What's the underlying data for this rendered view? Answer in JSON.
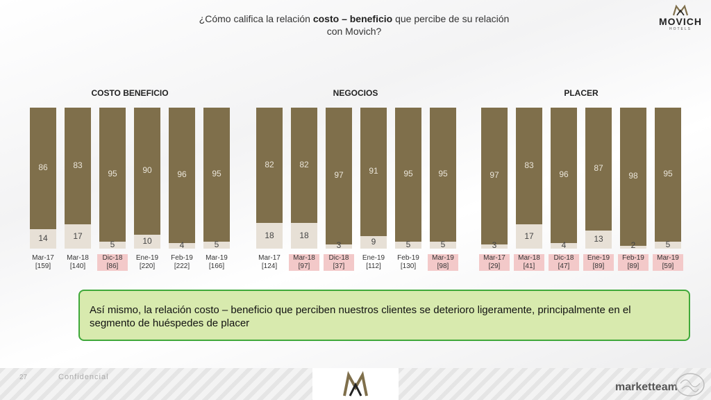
{
  "title": {
    "part1": "¿Cómo califica la relación ",
    "bold": "costo – beneficio",
    "part2": " que percibe de su relación",
    "line2": "con Movich?"
  },
  "brand": {
    "name": "MOVICH",
    "sub": "HOTELS"
  },
  "colors": {
    "bar_top": "#7f6f4b",
    "bar_bottom": "#e7e0d6",
    "highlight": "#f3c9c9",
    "note_bg": "#d8eaae",
    "note_border": "#3fa83a"
  },
  "chart_data": [
    {
      "type": "bar",
      "title": "COSTO BENEFICIO",
      "categories": [
        "Mar-17",
        "Mar-18",
        "Dic-18",
        "Ene-19",
        "Feb-19",
        "Mar-19"
      ],
      "bases": [
        "[159]",
        "[140]",
        "[86]",
        "[220]",
        "[222]",
        "[166]"
      ],
      "highlighted": [
        false,
        false,
        true,
        false,
        false,
        false
      ],
      "series": [
        {
          "values": [
            86,
            83,
            95,
            90,
            96,
            95
          ]
        },
        {
          "values": [
            14,
            17,
            5,
            10,
            4,
            5
          ]
        }
      ],
      "stacked": true,
      "ylim": [
        0,
        100
      ]
    },
    {
      "type": "bar",
      "title": "NEGOCIOS",
      "categories": [
        "Mar-17",
        "Mar-18",
        "Dic-18",
        "Ene-19",
        "Feb-19",
        "Mar-19"
      ],
      "bases": [
        "[124]",
        "[97]",
        "[37]",
        "[112]",
        "[130]",
        "[98]"
      ],
      "highlighted": [
        false,
        true,
        true,
        false,
        false,
        true
      ],
      "series": [
        {
          "values": [
            82,
            82,
            97,
            91,
            95,
            95
          ]
        },
        {
          "values": [
            18,
            18,
            3,
            9,
            5,
            5
          ]
        }
      ],
      "stacked": true,
      "ylim": [
        0,
        100
      ]
    },
    {
      "type": "bar",
      "title": "PLACER",
      "categories": [
        "Mar-17",
        "Mar-18",
        "Dic-18",
        "Ene-19",
        "Feb-19",
        "Mar-19"
      ],
      "bases": [
        "[29]",
        "[41]",
        "[47]",
        "[89]",
        "[89]",
        "[59]"
      ],
      "highlighted": [
        true,
        true,
        true,
        true,
        true,
        true
      ],
      "series": [
        {
          "values": [
            97,
            83,
            96,
            87,
            98,
            95
          ]
        },
        {
          "values": [
            3,
            17,
            4,
            13,
            2,
            5
          ]
        }
      ],
      "stacked": true,
      "ylim": [
        0,
        100
      ]
    }
  ],
  "note": "Así mismo, la relación costo – beneficio que perciben nuestros clientes se deterioro ligeramente, principalmente en el segmento de huéspedes de placer",
  "footer": {
    "page": "27",
    "label": "Confidencial",
    "company": "marketteam"
  }
}
